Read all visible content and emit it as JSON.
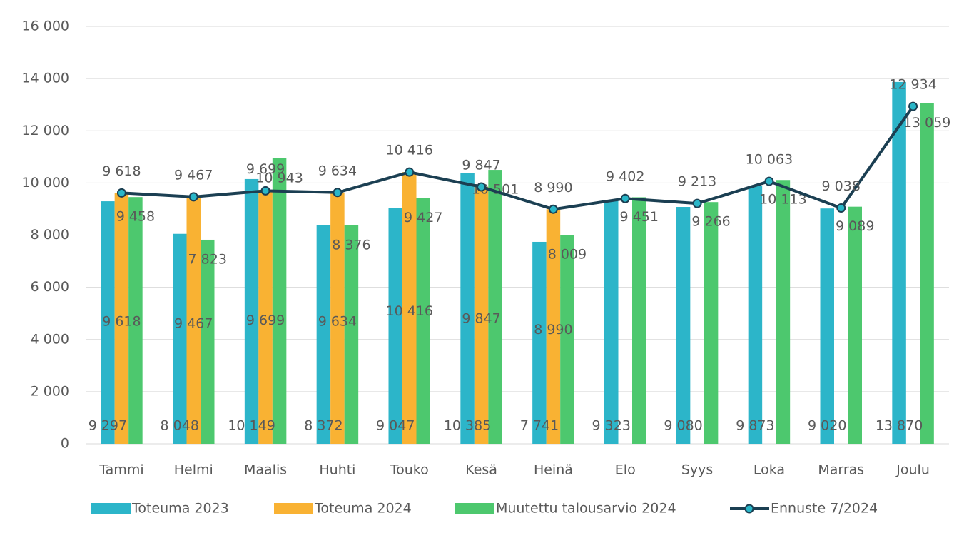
{
  "chart_data": {
    "type": "bar",
    "categories": [
      "Tammi",
      "Helmi",
      "Maalis",
      "Huhti",
      "Touko",
      "Kesä",
      "Heinä",
      "Elo",
      "Syys",
      "Loka",
      "Marras",
      "Joulu"
    ],
    "series": [
      {
        "name": "Toteuma 2023",
        "color": "#2cb5c9",
        "values": [
          9297,
          8048,
          10149,
          8372,
          9047,
          10385,
          7741,
          9323,
          9080,
          9873,
          9020,
          13870
        ],
        "value_labels": [
          "9 297",
          "8 048",
          "10 149",
          "8 372",
          "9 047",
          "10 385",
          "7 741",
          "9 323",
          "9 080",
          "9 873",
          "9 020",
          "13 870"
        ]
      },
      {
        "name": "Toteuma 2024",
        "color": "#f9b233",
        "values": [
          9618,
          9467,
          9699,
          9634,
          10416,
          9847,
          8990,
          null,
          null,
          null,
          null,
          null
        ],
        "value_labels": [
          "9 618",
          "9 467",
          "9 699",
          "9 634",
          "10 416",
          "9 847",
          "8 990",
          null,
          null,
          null,
          null,
          null
        ]
      },
      {
        "name": "Muutettu talousarvio 2024",
        "color": "#4dc86e",
        "values": [
          9458,
          7823,
          10943,
          8376,
          9427,
          10501,
          8009,
          9451,
          9266,
          10113,
          9089,
          13059
        ],
        "value_labels": [
          "9 458",
          "7 823",
          "10 943",
          "8 376",
          "9 427",
          "10 501",
          "8 009",
          "9 451",
          "9 266",
          "10 113",
          "9 089",
          "13 059"
        ]
      },
      {
        "name": "Ennuste 7/2024",
        "color": "#1b3f52",
        "type": "line",
        "marker_color": "#29b6c8",
        "values": [
          9618,
          9467,
          9699,
          9634,
          10416,
          9847,
          8990,
          9402,
          9213,
          10063,
          9038,
          12934
        ],
        "value_labels": [
          "9 618",
          "9 467",
          "9 699",
          "9 634",
          "10 416",
          "9 847",
          "8 990",
          "9 402",
          "9 213",
          "10 063",
          "9 038",
          "12 934"
        ]
      }
    ],
    "ylim": [
      0,
      16000
    ],
    "yticks": [
      0,
      {
        "value": 2000,
        "label": "2 000"
      },
      {
        "value": 4000,
        "label": "4 000"
      },
      {
        "value": 6000,
        "label": "6 000"
      },
      {
        "value": 8000,
        "label": "8 000"
      },
      {
        "value": 10000,
        "label": "10 000"
      },
      {
        "value": 12000,
        "label": "12 000"
      },
      {
        "value": 14000,
        "label": "14 000"
      },
      {
        "value": 16000,
        "label": "16 000"
      }
    ],
    "grid": true,
    "legend": "bottom"
  }
}
